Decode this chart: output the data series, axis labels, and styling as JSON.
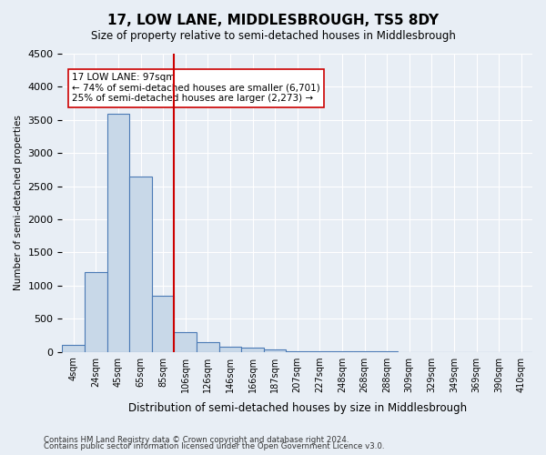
{
  "title": "17, LOW LANE, MIDDLESBROUGH, TS5 8DY",
  "subtitle": "Size of property relative to semi-detached houses in Middlesbrough",
  "xlabel": "Distribution of semi-detached houses by size in Middlesbrough",
  "ylabel": "Number of semi-detached properties",
  "footnote1": "Contains HM Land Registry data © Crown copyright and database right 2024.",
  "footnote2": "Contains public sector information licensed under the Open Government Licence v3.0.",
  "property_label": "17 LOW LANE: 97sqm",
  "pct_smaller": 74,
  "n_smaller": 6701,
  "pct_larger": 25,
  "n_larger": 2273,
  "bin_labels": [
    "4sqm",
    "24sqm",
    "45sqm",
    "65sqm",
    "85sqm",
    "106sqm",
    "126sqm",
    "146sqm",
    "166sqm",
    "187sqm",
    "207sqm",
    "227sqm",
    "248sqm",
    "268sqm",
    "288sqm",
    "309sqm",
    "329sqm",
    "349sqm",
    "369sqm",
    "390sqm",
    "410sqm"
  ],
  "bar_values": [
    100,
    1200,
    3600,
    2650,
    850,
    300,
    150,
    80,
    60,
    40,
    10,
    5,
    3,
    2,
    1,
    0,
    0,
    0,
    0,
    0,
    0
  ],
  "bar_color": "#c8d8e8",
  "bar_edge_color": "#4a7ab5",
  "vline_pos": 4.5,
  "vline_color": "#cc0000",
  "ylim": [
    0,
    4500
  ],
  "yticks": [
    0,
    500,
    1000,
    1500,
    2000,
    2500,
    3000,
    3500,
    4000,
    4500
  ],
  "annotation_box_color": "#ffffff",
  "annotation_box_edge": "#cc0000",
  "background_color": "#e8eef5",
  "axes_background": "#e8eef5"
}
